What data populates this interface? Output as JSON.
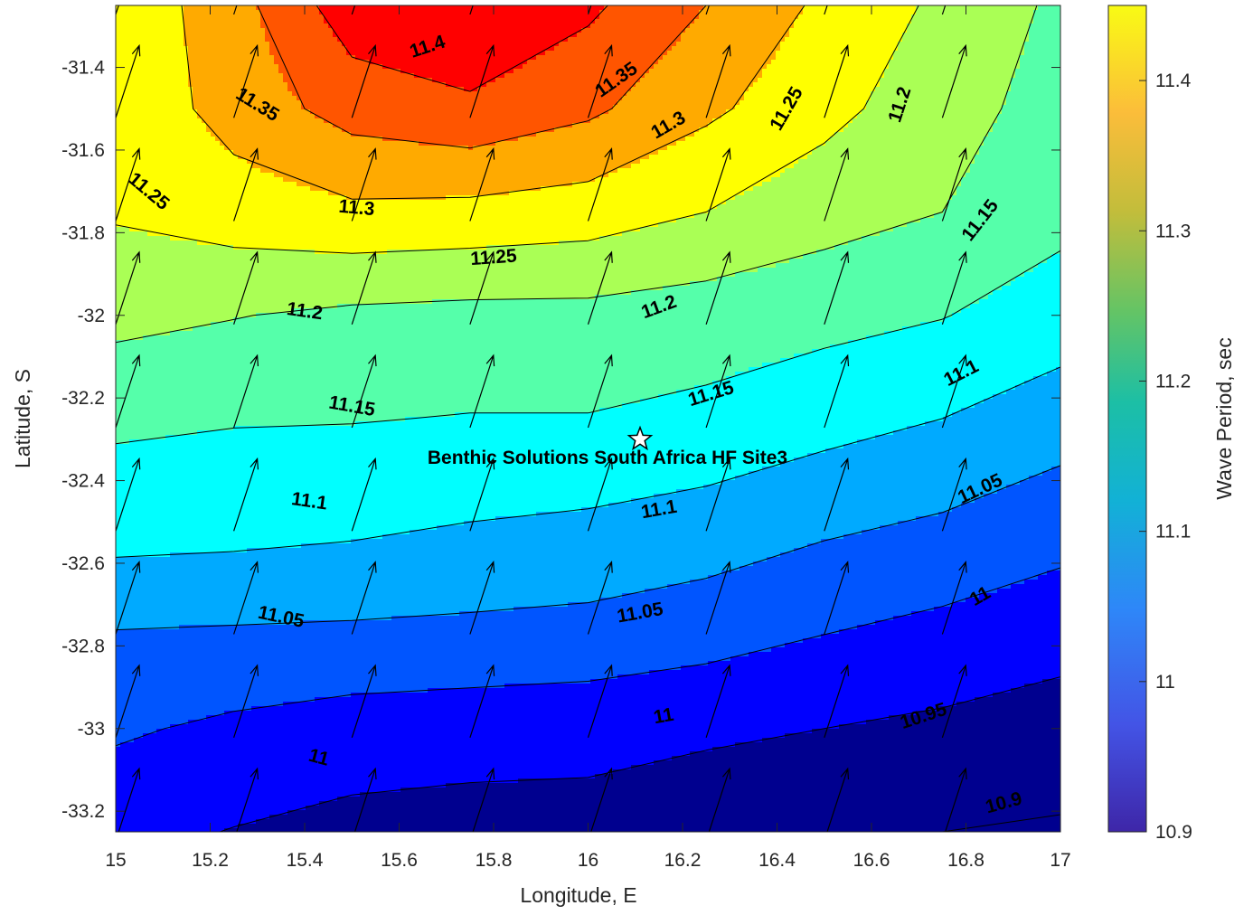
{
  "chart_data": {
    "type": "contour",
    "xlabel": "Longitude, E",
    "ylabel": "Latitude, S",
    "xlim": [
      15,
      17
    ],
    "ylim": [
      -33.25,
      -31.25
    ],
    "xticks": [
      "15",
      "15.2",
      "15.4",
      "15.6",
      "15.8",
      "16",
      "16.2",
      "16.4",
      "16.6",
      "16.8",
      "17"
    ],
    "yticks": [
      "-31.4",
      "-31.6",
      "-31.8",
      "-32",
      "-32.2",
      "-32.4",
      "-32.6",
      "-32.8",
      "-33",
      "-33.2"
    ],
    "colorbar": {
      "label": "Wave Period, sec",
      "range": [
        10.9,
        11.45
      ],
      "ticks": [
        "10.9",
        "11",
        "11.1",
        "11.2",
        "11.3",
        "11.4"
      ]
    },
    "grid": {
      "lon": [
        15,
        15.25,
        15.5,
        15.75,
        16,
        16.25,
        16.5,
        16.75,
        17
      ],
      "lat": [
        -33.25,
        -33,
        -32.75,
        -32.5,
        -32.25,
        -32,
        -31.75,
        -31.5,
        -31.25
      ],
      "period": [
        [
          10.965,
          10.948,
          10.935,
          10.93,
          10.93,
          10.92,
          10.91,
          10.9,
          10.895
        ],
        [
          11.007,
          10.99,
          10.977,
          10.972,
          10.968,
          10.958,
          10.95,
          10.94,
          10.925
        ],
        [
          11.052,
          11.05,
          11.047,
          11.043,
          11.038,
          11.025,
          11.005,
          10.99,
          10.975
        ],
        [
          11.125,
          11.12,
          11.112,
          11.1,
          11.093,
          11.08,
          11.06,
          11.045,
          11.02
        ],
        [
          11.158,
          11.153,
          11.152,
          11.148,
          11.148,
          11.138,
          11.118,
          11.1,
          11.075
        ],
        [
          11.215,
          11.202,
          11.19,
          11.185,
          11.185,
          11.175,
          11.165,
          11.152,
          11.125
        ],
        [
          11.255,
          11.275,
          11.29,
          11.285,
          11.275,
          11.25,
          11.22,
          11.2,
          11.165
        ],
        [
          11.262,
          11.32,
          11.37,
          11.39,
          11.36,
          11.31,
          11.265,
          11.22,
          11.18
        ],
        [
          11.262,
          11.33,
          11.43,
          11.45,
          11.41,
          11.35,
          11.29,
          11.24,
          11.19
        ]
      ]
    },
    "contour_levels": [
      10.9,
      10.95,
      11,
      11.05,
      11.1,
      11.15,
      11.2,
      11.25,
      11.3,
      11.35,
      11.4
    ],
    "contour_labels": [
      {
        "text": "11.4",
        "lon": 15.66,
        "lat": -31.35,
        "angle": -18
      },
      {
        "text": "11.35",
        "lon": 16.06,
        "lat": -31.43,
        "angle": -35
      },
      {
        "text": "11.35",
        "lon": 15.3,
        "lat": -31.49,
        "angle": 32
      },
      {
        "text": "11.3",
        "lon": 16.17,
        "lat": -31.54,
        "angle": -30
      },
      {
        "text": "11.25",
        "lon": 16.42,
        "lat": -31.5,
        "angle": -60
      },
      {
        "text": "11.2",
        "lon": 16.66,
        "lat": -31.49,
        "angle": -72
      },
      {
        "text": "11.3",
        "lon": 15.51,
        "lat": -31.74,
        "angle": 5
      },
      {
        "text": "11.25",
        "lon": 15.07,
        "lat": -31.7,
        "angle": 40
      },
      {
        "text": "11.25",
        "lon": 15.8,
        "lat": -31.86,
        "angle": -4
      },
      {
        "text": "11.15",
        "lon": 16.83,
        "lat": -31.77,
        "angle": -52
      },
      {
        "text": "11.2",
        "lon": 15.4,
        "lat": -31.99,
        "angle": 8
      },
      {
        "text": "11.2",
        "lon": 16.15,
        "lat": -31.98,
        "angle": -20
      },
      {
        "text": "11.15",
        "lon": 15.5,
        "lat": -32.22,
        "angle": 10
      },
      {
        "text": "11.15",
        "lon": 16.26,
        "lat": -32.19,
        "angle": -17
      },
      {
        "text": "11.1",
        "lon": 16.79,
        "lat": -32.14,
        "angle": -27
      },
      {
        "text": "11.1",
        "lon": 15.41,
        "lat": -32.45,
        "angle": 8
      },
      {
        "text": "11.1",
        "lon": 16.15,
        "lat": -32.47,
        "angle": -10
      },
      {
        "text": "11.05",
        "lon": 16.83,
        "lat": -32.42,
        "angle": -25
      },
      {
        "text": "11.05",
        "lon": 15.35,
        "lat": -32.73,
        "angle": 12
      },
      {
        "text": "11.05",
        "lon": 16.11,
        "lat": -32.72,
        "angle": -10
      },
      {
        "text": "11",
        "lon": 16.83,
        "lat": -32.68,
        "angle": -30
      },
      {
        "text": "11",
        "lon": 16.16,
        "lat": -32.97,
        "angle": -10
      },
      {
        "text": "11",
        "lon": 15.43,
        "lat": -33.07,
        "angle": 15
      },
      {
        "text": "10.95",
        "lon": 16.71,
        "lat": -32.97,
        "angle": -18
      },
      {
        "text": "10.9",
        "lon": 16.88,
        "lat": -33.18,
        "angle": -15
      }
    ],
    "vector_field": {
      "spacing_lon": 0.25,
      "spacing_lat": 0.25,
      "direction_deg_from_north": 18
    },
    "site": {
      "name": "Benthic Solutions South Africa HF Site3",
      "lon": 16.11,
      "lat": -32.3
    }
  }
}
